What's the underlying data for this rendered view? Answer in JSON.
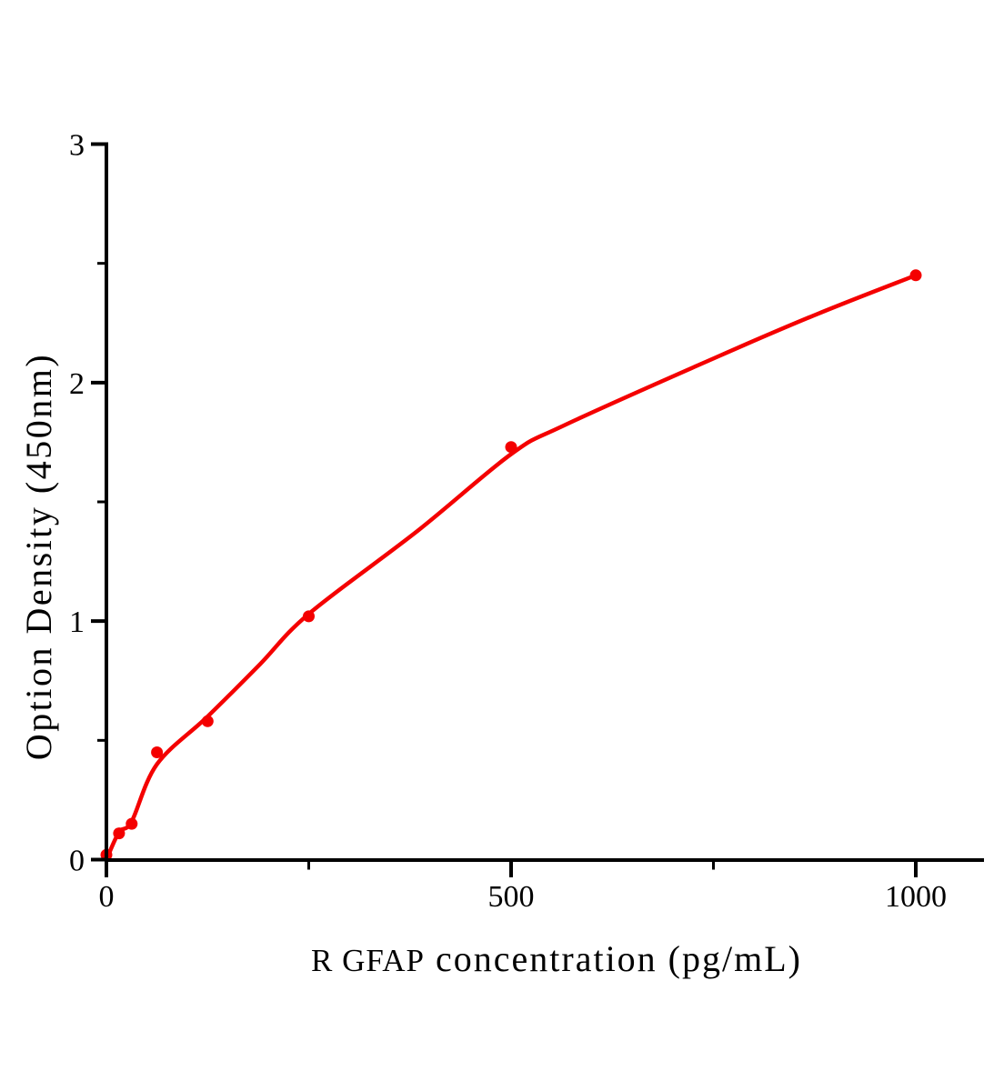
{
  "chart_data": {
    "type": "scatter",
    "title": "",
    "xlabel": "R GFAP concentration (pg/mL)",
    "xlabel_prefix": "R GFAP",
    "xlabel_rest": "concentration (pg/mL)",
    "ylabel": "Option Density (450nm)",
    "xlim": [
      0,
      1085
    ],
    "ylim": [
      0,
      3
    ],
    "x_ticks": [
      0,
      500,
      1000
    ],
    "x_minor_ticks": [
      250,
      750
    ],
    "y_ticks": [
      0,
      1,
      2,
      3
    ],
    "y_minor_ticks": [
      0.5,
      1.5,
      2.5
    ],
    "grid": false,
    "legend": "none",
    "colors": {
      "series": "#f40000",
      "axis": "#000000",
      "background": "#ffffff"
    },
    "series": [
      {
        "name": "standard-points",
        "type": "scatter",
        "marker": "circle",
        "color": "#f40000",
        "points": [
          {
            "x": 0,
            "y": 0.02
          },
          {
            "x": 15.6,
            "y": 0.11
          },
          {
            "x": 31.2,
            "y": 0.15
          },
          {
            "x": 62.5,
            "y": 0.45
          },
          {
            "x": 125,
            "y": 0.58
          },
          {
            "x": 250,
            "y": 1.02
          },
          {
            "x": 500,
            "y": 1.73
          },
          {
            "x": 1000,
            "y": 2.45
          }
        ]
      },
      {
        "name": "fitted-curve",
        "type": "line",
        "color": "#f40000",
        "points": [
          [
            0,
            0.0
          ],
          [
            15.6,
            0.115
          ],
          [
            31.2,
            0.16
          ],
          [
            62.5,
            0.4
          ],
          [
            125,
            0.6
          ],
          [
            190,
            0.82
          ],
          [
            250,
            1.03
          ],
          [
            385,
            1.38
          ],
          [
            500,
            1.7
          ],
          [
            565,
            1.82
          ],
          [
            756,
            2.11
          ],
          [
            880,
            2.29
          ],
          [
            1000,
            2.45
          ]
        ]
      }
    ]
  }
}
